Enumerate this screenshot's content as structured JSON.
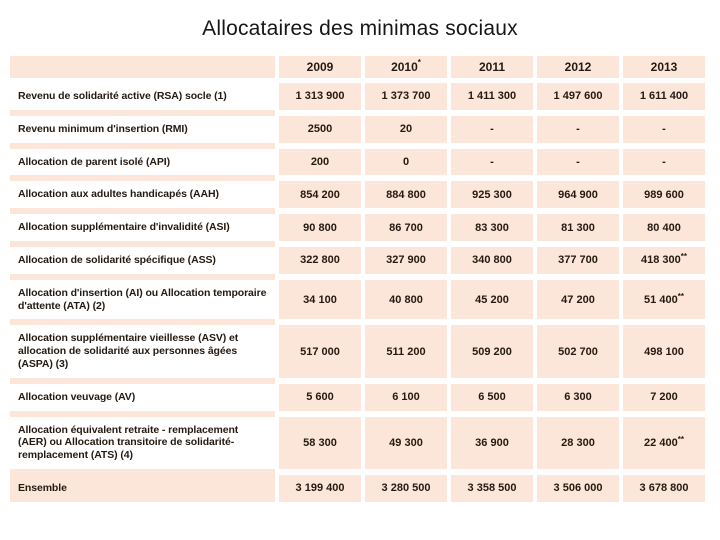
{
  "title": "Allocataires des minimas sociaux",
  "colors": {
    "cell_pink": "#fce5d9",
    "text": "#241a12",
    "page_background": "#ffffff"
  },
  "table": {
    "columns": [
      "",
      "2009",
      "2010*",
      "2011",
      "2012",
      "2013"
    ],
    "rows": [
      {
        "label": "Revenu de solidarité active (RSA) socle (1)",
        "values": [
          "1 313 900",
          "1 373 700",
          "1 411 300",
          "1 497 600",
          "1 611 400"
        ],
        "total": false
      },
      {
        "label": "Revenu minimum d'insertion (RMI)",
        "values": [
          "2500",
          "20",
          "-",
          "-",
          "-"
        ],
        "total": false
      },
      {
        "label": "Allocation de parent isolé (API)",
        "values": [
          "200",
          "0",
          "-",
          "-",
          "-"
        ],
        "total": false
      },
      {
        "label": "Allocation aux adultes handicapés (AAH)",
        "values": [
          "854 200",
          "884 800",
          "925 300",
          "964 900",
          "989 600"
        ],
        "total": false
      },
      {
        "label": "Allocation supplémentaire d'invalidité (ASI)",
        "values": [
          "90 800",
          "86 700",
          "83 300",
          "81 300",
          "80 400"
        ],
        "total": false
      },
      {
        "label": "Allocation de solidarité spécifique (ASS)",
        "values": [
          "322 800",
          "327 900",
          "340 800",
          "377 700",
          "418 300**"
        ],
        "total": false
      },
      {
        "label": "Allocation d'insertion (AI) ou Allocation temporaire d'attente (ATA) (2)",
        "values": [
          "34 100",
          "40 800",
          "45 200",
          "47 200",
          "51 400**"
        ],
        "total": false
      },
      {
        "label": "Allocation supplémentaire vieillesse (ASV) et allocation de solidarité aux personnes âgées (ASPA) (3)",
        "values": [
          "517 000",
          "511 200",
          "509 200",
          "502 700",
          "498 100"
        ],
        "total": false
      },
      {
        "label": "Allocation veuvage (AV)",
        "values": [
          "5 600",
          "6 100",
          "6 500",
          "6 300",
          "7 200"
        ],
        "total": false
      },
      {
        "label": "Allocation équivalent retraite - remplacement (AER) ou Allocation transitoire de solidarité-remplacement (ATS) (4)",
        "values": [
          "58 300",
          "49 300",
          "36 900",
          "28 300",
          "22 400**"
        ],
        "total": false
      },
      {
        "label": "Ensemble",
        "values": [
          "3 199 400",
          "3 280 500",
          "3 358 500",
          "3 506 000",
          "3 678 800"
        ],
        "total": true
      }
    ]
  }
}
